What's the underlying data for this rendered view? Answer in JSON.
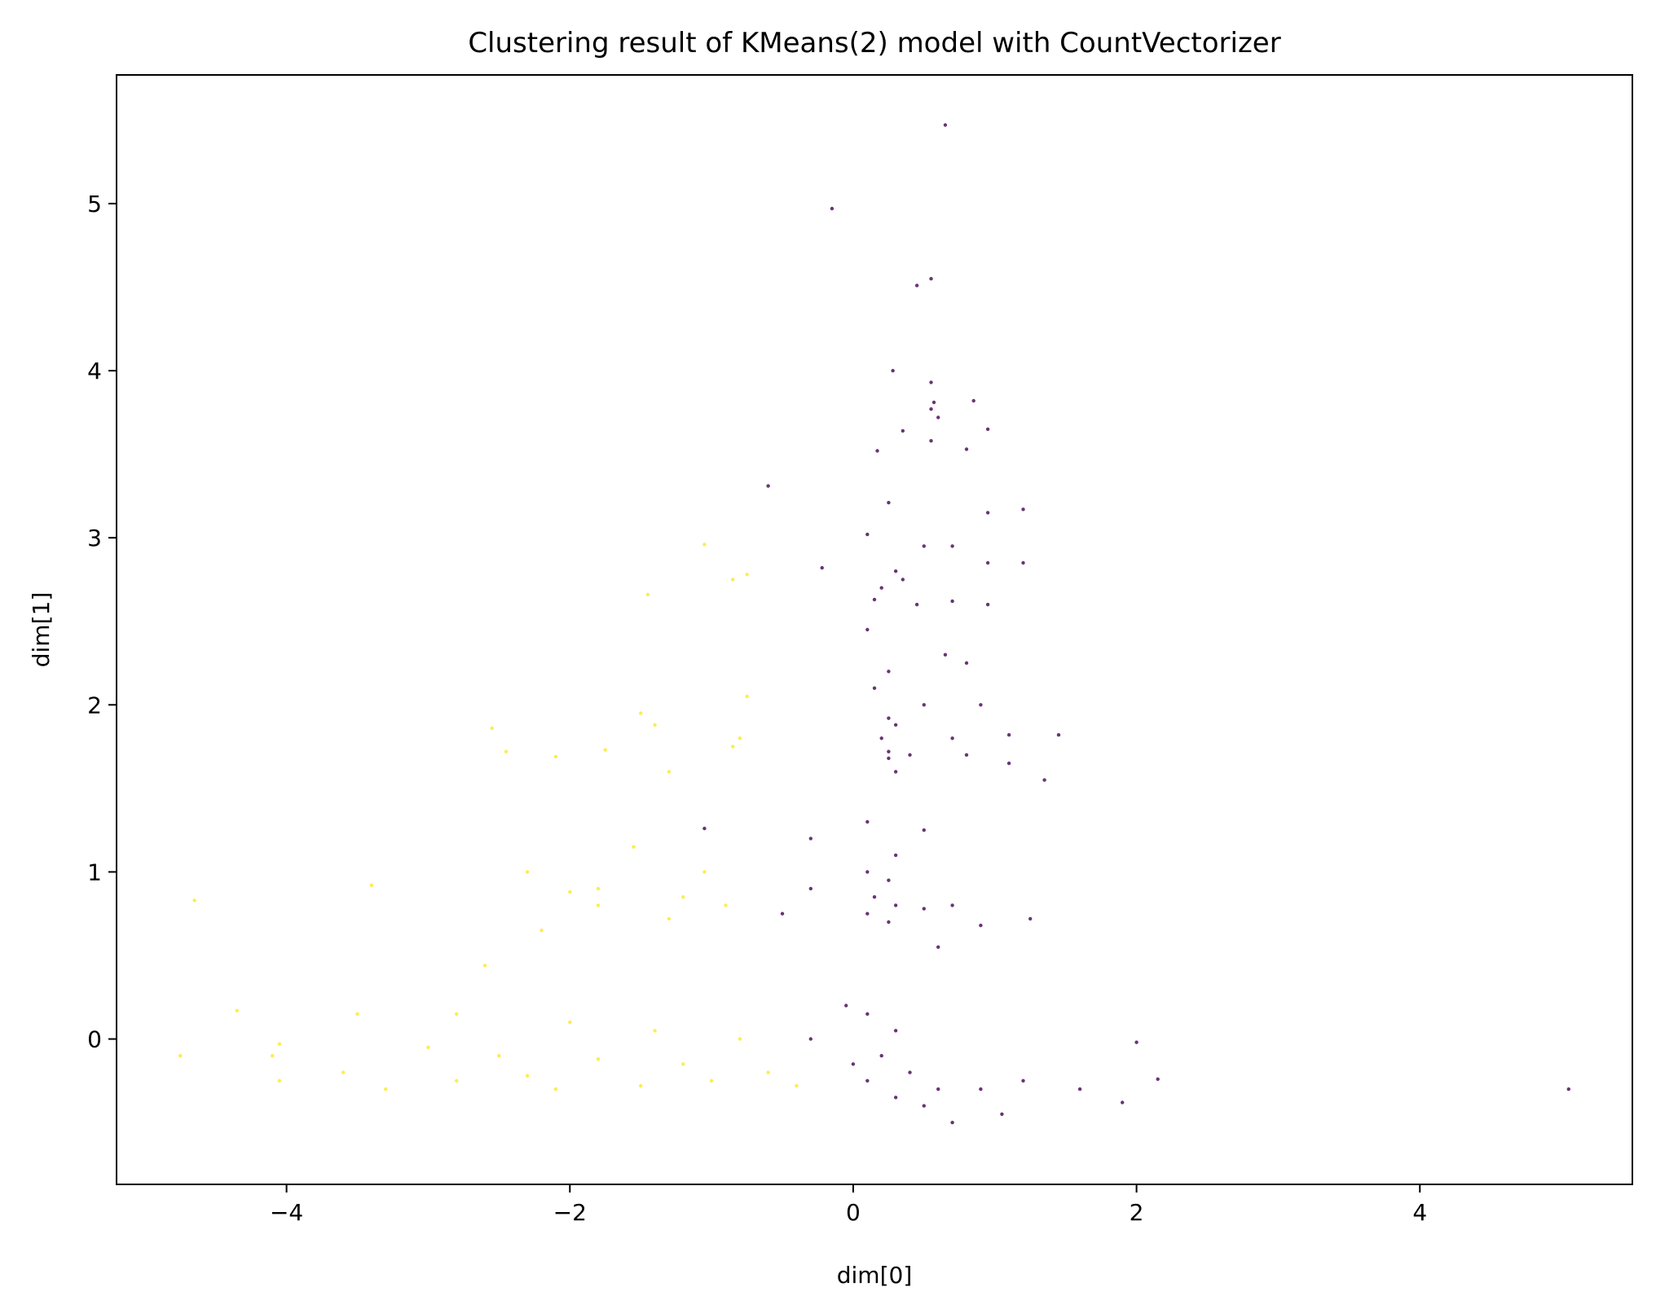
{
  "chart_data": {
    "type": "scatter",
    "title": "Clustering result of KMeans(2) model with CountVectorizer",
    "xlabel": "dim[0]",
    "ylabel": "dim[1]",
    "xlim": [
      -5.2,
      5.5
    ],
    "ylim": [
      -0.87,
      5.77
    ],
    "xticks": [
      -4,
      -2,
      0,
      2,
      4
    ],
    "yticks": [
      0,
      1,
      2,
      3,
      4,
      5
    ],
    "grid": false,
    "colors": {
      "cluster_0": "#440154",
      "cluster_1": "#fde725"
    },
    "series": [
      {
        "cluster": 0,
        "color": "#440154",
        "points": [
          [
            0.65,
            5.47
          ],
          [
            -0.15,
            4.97
          ],
          [
            0.55,
            4.55
          ],
          [
            0.45,
            4.51
          ],
          [
            0.28,
            4.0
          ],
          [
            0.55,
            3.93
          ],
          [
            0.85,
            3.82
          ],
          [
            0.57,
            3.81
          ],
          [
            0.55,
            3.77
          ],
          [
            0.6,
            3.72
          ],
          [
            0.35,
            3.64
          ],
          [
            0.55,
            3.58
          ],
          [
            0.8,
            3.53
          ],
          [
            0.17,
            3.52
          ],
          [
            0.95,
            3.65
          ],
          [
            -0.6,
            3.31
          ],
          [
            0.95,
            3.15
          ],
          [
            1.2,
            3.17
          ],
          [
            0.25,
            3.21
          ],
          [
            0.1,
            3.02
          ],
          [
            0.5,
            2.95
          ],
          [
            0.7,
            2.95
          ],
          [
            0.95,
            2.85
          ],
          [
            1.2,
            2.85
          ],
          [
            -0.22,
            2.82
          ],
          [
            0.3,
            2.8
          ],
          [
            0.35,
            2.75
          ],
          [
            0.2,
            2.7
          ],
          [
            0.15,
            2.63
          ],
          [
            0.45,
            2.6
          ],
          [
            0.7,
            2.62
          ],
          [
            0.95,
            2.6
          ],
          [
            0.1,
            2.45
          ],
          [
            0.65,
            2.3
          ],
          [
            0.8,
            2.25
          ],
          [
            0.25,
            2.2
          ],
          [
            0.15,
            2.1
          ],
          [
            0.5,
            2.0
          ],
          [
            0.9,
            2.0
          ],
          [
            0.25,
            1.92
          ],
          [
            0.3,
            1.88
          ],
          [
            0.2,
            1.8
          ],
          [
            0.7,
            1.8
          ],
          [
            1.1,
            1.82
          ],
          [
            1.45,
            1.82
          ],
          [
            0.25,
            1.72
          ],
          [
            0.25,
            1.68
          ],
          [
            0.4,
            1.7
          ],
          [
            0.8,
            1.7
          ],
          [
            1.1,
            1.65
          ],
          [
            0.3,
            1.6
          ],
          [
            1.35,
            1.55
          ],
          [
            -1.05,
            1.26
          ],
          [
            0.1,
            1.3
          ],
          [
            0.5,
            1.25
          ],
          [
            -0.3,
            1.2
          ],
          [
            0.3,
            1.1
          ],
          [
            0.1,
            1.0
          ],
          [
            0.25,
            0.95
          ],
          [
            -0.3,
            0.9
          ],
          [
            0.15,
            0.85
          ],
          [
            0.3,
            0.8
          ],
          [
            0.1,
            0.75
          ],
          [
            0.25,
            0.7
          ],
          [
            0.5,
            0.78
          ],
          [
            0.7,
            0.8
          ],
          [
            -0.5,
            0.75
          ],
          [
            0.9,
            0.68
          ],
          [
            1.25,
            0.72
          ],
          [
            0.6,
            0.55
          ],
          [
            -0.05,
            0.2
          ],
          [
            0.1,
            0.15
          ],
          [
            0.3,
            0.05
          ],
          [
            -0.3,
            0.0
          ],
          [
            0.2,
            -0.1
          ],
          [
            0.0,
            -0.15
          ],
          [
            0.4,
            -0.2
          ],
          [
            0.1,
            -0.25
          ],
          [
            0.6,
            -0.3
          ],
          [
            0.9,
            -0.3
          ],
          [
            1.2,
            -0.25
          ],
          [
            0.3,
            -0.35
          ],
          [
            0.5,
            -0.4
          ],
          [
            1.6,
            -0.3
          ],
          [
            2.0,
            -0.02
          ],
          [
            2.15,
            -0.24
          ],
          [
            1.9,
            -0.38
          ],
          [
            5.05,
            -0.3
          ],
          [
            0.7,
            -0.5
          ],
          [
            1.05,
            -0.45
          ]
        ]
      },
      {
        "cluster": 1,
        "color": "#fde725",
        "points": [
          [
            -1.05,
            2.96
          ],
          [
            -0.75,
            2.78
          ],
          [
            -0.85,
            2.75
          ],
          [
            -1.45,
            2.66
          ],
          [
            -0.75,
            2.05
          ],
          [
            -1.5,
            1.95
          ],
          [
            -2.55,
            1.86
          ],
          [
            -1.4,
            1.88
          ],
          [
            -0.8,
            1.8
          ],
          [
            -2.45,
            1.72
          ],
          [
            -2.1,
            1.69
          ],
          [
            -1.75,
            1.73
          ],
          [
            -0.85,
            1.75
          ],
          [
            -1.3,
            1.6
          ],
          [
            -1.55,
            1.15
          ],
          [
            -2.3,
            1.0
          ],
          [
            -1.05,
            1.0
          ],
          [
            -3.4,
            0.92
          ],
          [
            -1.8,
            0.9
          ],
          [
            -2.0,
            0.88
          ],
          [
            -1.2,
            0.85
          ],
          [
            -4.65,
            0.83
          ],
          [
            -1.8,
            0.8
          ],
          [
            -0.9,
            0.8
          ],
          [
            -1.3,
            0.72
          ],
          [
            -2.2,
            0.65
          ],
          [
            -2.6,
            0.44
          ],
          [
            -4.35,
            0.17
          ],
          [
            -3.5,
            0.15
          ],
          [
            -2.8,
            0.15
          ],
          [
            -2.0,
            0.1
          ],
          [
            -1.4,
            0.05
          ],
          [
            -0.8,
            0.0
          ],
          [
            -3.0,
            -0.05
          ],
          [
            -2.5,
            -0.1
          ],
          [
            -1.8,
            -0.12
          ],
          [
            -1.2,
            -0.15
          ],
          [
            -0.6,
            -0.2
          ],
          [
            -4.05,
            -0.03
          ],
          [
            -4.1,
            -0.1
          ],
          [
            -4.75,
            -0.1
          ],
          [
            -3.6,
            -0.2
          ],
          [
            -2.8,
            -0.25
          ],
          [
            -2.1,
            -0.3
          ],
          [
            -1.5,
            -0.28
          ],
          [
            -4.05,
            -0.25
          ],
          [
            -0.4,
            -0.28
          ],
          [
            -1.0,
            -0.25
          ],
          [
            -3.3,
            -0.3
          ],
          [
            -2.3,
            -0.22
          ]
        ]
      }
    ]
  }
}
